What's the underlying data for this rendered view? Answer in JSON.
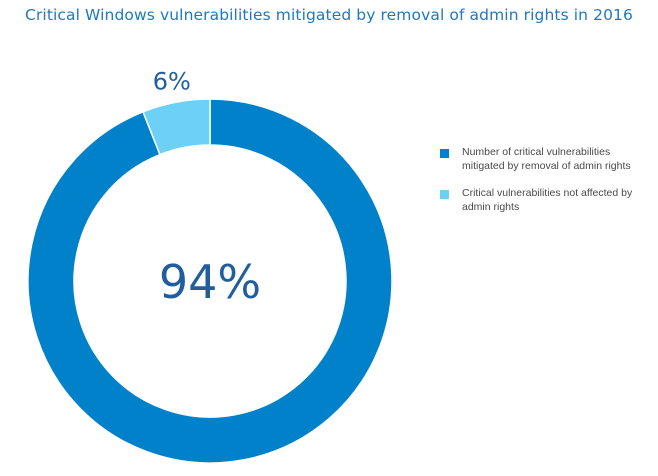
{
  "chart_data": {
    "type": "pie",
    "title": "Critical Windows vulnerabilities mitigated by removal of admin rights in 2016",
    "series": [
      {
        "name": "Number of critical vulnerabilities mitigated by removal of admin rights",
        "value": 94,
        "label": "94%",
        "color": "#0081c9"
      },
      {
        "name": "Critical vulnerabilities not affected by admin rights",
        "value": 6,
        "label": "6%",
        "color": "#6dd0f7"
      }
    ],
    "style": "donut",
    "legend_position": "right"
  },
  "colors": {
    "title": "#1f78c1",
    "label": "#1f5f9e"
  }
}
